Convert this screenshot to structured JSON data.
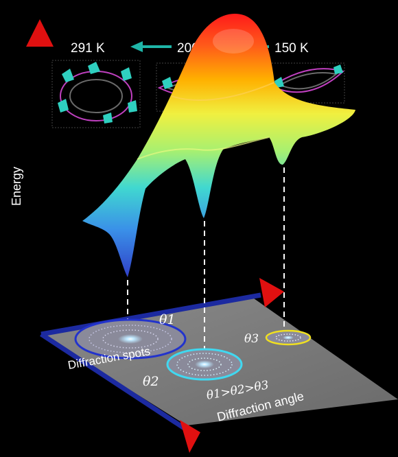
{
  "axes": {
    "energy_label": "Energy",
    "diffraction_angle_label": "Diffraction angle"
  },
  "temperatures": {
    "t1": "291 K",
    "t2": "200 K",
    "t3": "150 K"
  },
  "plane": {
    "diffraction_spots_label": "Diffraction spots",
    "theta1": "θ1",
    "theta2": "θ2",
    "theta3": "θ3",
    "relation": "θ1>θ2>θ3"
  },
  "colors": {
    "axis_arrow": "#e01010",
    "axis_line": "#1c2aa0",
    "teal_arrow": "#1fb5a8",
    "ring1": "#2233cc",
    "ring2": "#40d8f0",
    "ring3": "#f0e020"
  }
}
